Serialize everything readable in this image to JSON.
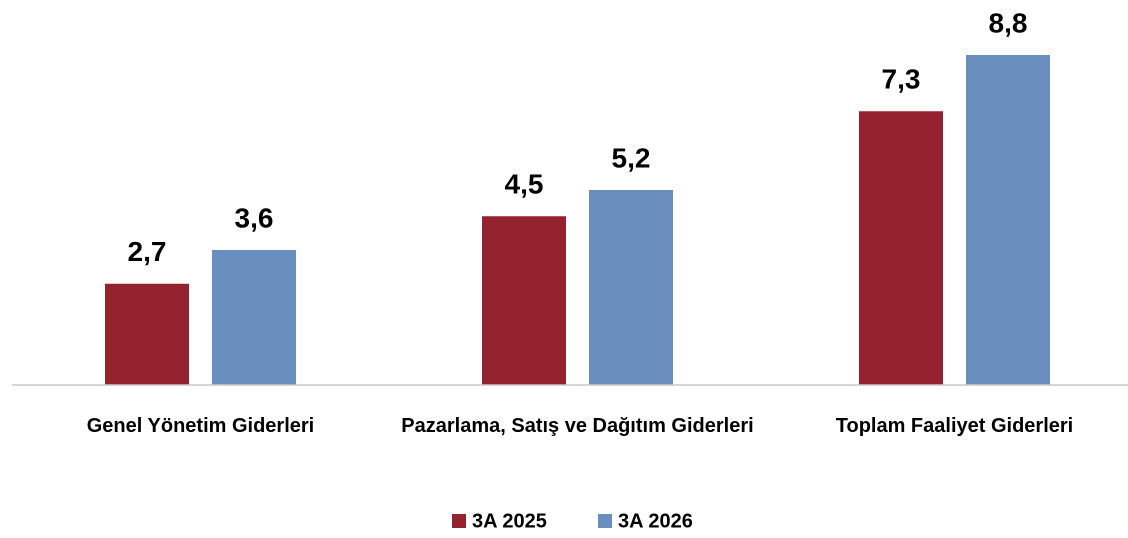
{
  "chart_data": {
    "type": "bar",
    "categories": [
      "Genel Yönetim Giderleri",
      "Pazarlama, Satış ve Dağıtım Giderleri",
      "Toplam Faaliyet Giderleri"
    ],
    "series": [
      {
        "name": "3A 2025",
        "color": "#942330",
        "values": [
          2.7,
          4.5,
          7.3
        ],
        "value_labels": [
          "2,7",
          "4,5",
          "7,3"
        ]
      },
      {
        "name": "3A 2026",
        "color": "#6a8fbe",
        "values": [
          3.6,
          5.2,
          8.8
        ],
        "value_labels": [
          "3,6",
          "5,2",
          "8,8"
        ]
      }
    ],
    "ylim": [
      0,
      10
    ],
    "legend": "bottom"
  }
}
